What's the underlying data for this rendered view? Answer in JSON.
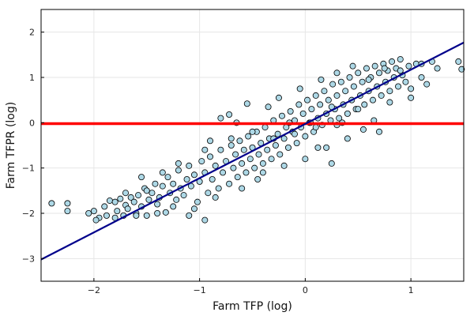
{
  "chart_data": {
    "type": "scatter",
    "title": "",
    "xlabel": "Farm TFP (log)",
    "ylabel": "Farm TFPR (log)",
    "xlim": [
      -2.5,
      1.5
    ],
    "ylim": [
      -3.5,
      2.5
    ],
    "x_ticks": [
      -2,
      -1,
      0,
      1
    ],
    "x_tick_labels": [
      "−2",
      "−1",
      "0",
      "1"
    ],
    "y_ticks": [
      -3,
      -2,
      -1,
      0,
      1,
      2
    ],
    "y_tick_labels": [
      "−3",
      "−2",
      "−1",
      "0",
      "1",
      "2"
    ],
    "grid": true,
    "legend": "none",
    "point_fill": "#add8e6",
    "point_stroke": "#000000",
    "points": [
      [
        -2.4,
        -1.78
      ],
      [
        -2.25,
        -1.78
      ],
      [
        -2.25,
        -1.95
      ],
      [
        -2.05,
        -2.0
      ],
      [
        -2.0,
        -1.95
      ],
      [
        -1.95,
        -2.1
      ],
      [
        -1.98,
        -2.15
      ],
      [
        -1.9,
        -1.85
      ],
      [
        -1.88,
        -2.05
      ],
      [
        -1.85,
        -1.72
      ],
      [
        -1.8,
        -2.1
      ],
      [
        -1.78,
        -1.95
      ],
      [
        -1.75,
        -1.68
      ],
      [
        -1.72,
        -2.05
      ],
      [
        -1.7,
        -1.82
      ],
      [
        -1.68,
        -1.9
      ],
      [
        -1.65,
        -1.65
      ],
      [
        -1.62,
        -1.75
      ],
      [
        -1.6,
        -2.0
      ],
      [
        -1.58,
        -1.6
      ],
      [
        -1.55,
        -1.85
      ],
      [
        -1.52,
        -1.45
      ],
      [
        -1.5,
        -2.05
      ],
      [
        -1.48,
        -1.7
      ],
      [
        -1.45,
        -1.55
      ],
      [
        -1.42,
        -1.35
      ],
      [
        -1.4,
        -1.8
      ],
      [
        -1.38,
        -1.65
      ],
      [
        -1.35,
        -1.4
      ],
      [
        -1.32,
        -1.98
      ],
      [
        -1.3,
        -1.2
      ],
      [
        -1.28,
        -1.55
      ],
      [
        -1.25,
        -1.35
      ],
      [
        -1.22,
        -1.7
      ],
      [
        -1.2,
        -1.05
      ],
      [
        -1.18,
        -1.45
      ],
      [
        -1.15,
        -1.6
      ],
      [
        -1.12,
        -1.25
      ],
      [
        -1.1,
        -0.95
      ],
      [
        -1.08,
        -1.4
      ],
      [
        -1.05,
        -1.15
      ],
      [
        -1.02,
        -1.75
      ],
      [
        -1.0,
        -1.3
      ],
      [
        -0.98,
        -0.85
      ],
      [
        -0.95,
        -1.1
      ],
      [
        -0.92,
        -1.55
      ],
      [
        -0.9,
        -0.75
      ],
      [
        -0.88,
        -1.25
      ],
      [
        -0.85,
        -0.95
      ],
      [
        -0.82,
        -1.45
      ],
      [
        -0.8,
        -0.6
      ],
      [
        -0.78,
        -1.1
      ],
      [
        -0.75,
        -0.85
      ],
      [
        -0.72,
        -1.35
      ],
      [
        -0.7,
        -0.5
      ],
      [
        -0.68,
        -1.0
      ],
      [
        -0.66,
        -0.7
      ],
      [
        -0.64,
        -1.2
      ],
      [
        -0.62,
        -0.4
      ],
      [
        -0.6,
        -0.9
      ],
      [
        -0.58,
        -0.6
      ],
      [
        -0.56,
        -1.1
      ],
      [
        -0.54,
        -0.3
      ],
      [
        -0.52,
        -0.8
      ],
      [
        -0.5,
        -0.55
      ],
      [
        -0.48,
        -1.0
      ],
      [
        -0.46,
        -0.2
      ],
      [
        -0.44,
        -0.7
      ],
      [
        -0.42,
        -0.45
      ],
      [
        -0.4,
        -0.9
      ],
      [
        -0.38,
        -0.1
      ],
      [
        -0.36,
        -0.6
      ],
      [
        -0.34,
        -0.35
      ],
      [
        -0.32,
        -0.8
      ],
      [
        -0.3,
        0.05
      ],
      [
        -0.28,
        -0.5
      ],
      [
        -0.26,
        -0.25
      ],
      [
        -0.24,
        -0.7
      ],
      [
        -0.22,
        0.15
      ],
      [
        -0.2,
        -0.35
      ],
      [
        -0.18,
        -0.1
      ],
      [
        -0.16,
        -0.55
      ],
      [
        -0.14,
        0.25
      ],
      [
        -0.12,
        -0.2
      ],
      [
        -0.1,
        0.05
      ],
      [
        -0.08,
        -0.45
      ],
      [
        -0.06,
        0.4
      ],
      [
        -0.04,
        -0.1
      ],
      [
        -0.02,
        0.2
      ],
      [
        0.0,
        -0.3
      ],
      [
        0.02,
        0.5
      ],
      [
        0.04,
        0.0
      ],
      [
        0.06,
        0.3
      ],
      [
        0.08,
        -0.2
      ],
      [
        0.1,
        0.6
      ],
      [
        0.12,
        0.1
      ],
      [
        0.14,
        0.4
      ],
      [
        0.16,
        -0.05
      ],
      [
        0.18,
        0.7
      ],
      [
        0.2,
        0.2
      ],
      [
        0.22,
        0.5
      ],
      [
        0.24,
        0.05
      ],
      [
        0.26,
        0.85
      ],
      [
        0.28,
        0.3
      ],
      [
        0.3,
        0.6
      ],
      [
        0.32,
        0.1
      ],
      [
        0.34,
        0.9
      ],
      [
        0.36,
        0.4
      ],
      [
        0.38,
        0.7
      ],
      [
        0.4,
        0.2
      ],
      [
        0.42,
        1.0
      ],
      [
        0.44,
        0.5
      ],
      [
        0.46,
        0.8
      ],
      [
        0.48,
        0.3
      ],
      [
        0.5,
        1.1
      ],
      [
        0.52,
        0.6
      ],
      [
        0.54,
        0.9
      ],
      [
        0.56,
        0.4
      ],
      [
        0.58,
        1.2
      ],
      [
        0.6,
        0.7
      ],
      [
        0.62,
        1.0
      ],
      [
        0.64,
        0.5
      ],
      [
        0.66,
        1.25
      ],
      [
        0.68,
        0.8
      ],
      [
        0.7,
        1.1
      ],
      [
        0.72,
        0.6
      ],
      [
        0.74,
        1.3
      ],
      [
        0.76,
        0.9
      ],
      [
        0.78,
        1.15
      ],
      [
        0.8,
        0.7
      ],
      [
        0.82,
        1.35
      ],
      [
        0.84,
        1.0
      ],
      [
        0.86,
        1.2
      ],
      [
        0.88,
        0.8
      ],
      [
        0.9,
        1.4
      ],
      [
        0.92,
        1.05
      ],
      [
        0.95,
        0.9
      ],
      [
        0.98,
        1.25
      ],
      [
        1.0,
        0.75
      ],
      [
        1.05,
        1.3
      ],
      [
        1.1,
        1.0
      ],
      [
        1.15,
        0.85
      ],
      [
        1.2,
        1.35
      ],
      [
        1.25,
        1.2
      ],
      [
        1.45,
        1.35
      ],
      [
        1.48,
        1.18
      ],
      [
        0.25,
        -0.9
      ],
      [
        0.12,
        -0.55
      ],
      [
        0.65,
        0.05
      ],
      [
        0.7,
        -0.2
      ],
      [
        -0.72,
        0.18
      ],
      [
        -0.55,
        0.42
      ],
      [
        -0.25,
        0.55
      ],
      [
        -0.35,
        0.35
      ],
      [
        -0.9,
        -0.4
      ],
      [
        -0.65,
        0.0
      ],
      [
        0.3,
        1.1
      ],
      [
        0.45,
        1.25
      ],
      [
        -0.05,
        0.75
      ],
      [
        0.15,
        0.95
      ],
      [
        -1.05,
        -1.9
      ],
      [
        -1.1,
        -2.05
      ],
      [
        -0.95,
        -2.15
      ],
      [
        -1.25,
        -1.85
      ],
      [
        -1.4,
        -2.0
      ],
      [
        -1.6,
        -2.05
      ],
      [
        -0.4,
        -1.1
      ],
      [
        -0.2,
        -0.95
      ],
      [
        0.0,
        -0.8
      ],
      [
        0.2,
        -0.55
      ],
      [
        0.4,
        -0.35
      ],
      [
        0.55,
        -0.15
      ],
      [
        -0.8,
        0.1
      ],
      [
        0.8,
        0.45
      ],
      [
        1.0,
        0.55
      ],
      [
        -0.6,
        -1.45
      ],
      [
        -0.45,
        -1.25
      ],
      [
        -0.85,
        -1.65
      ],
      [
        0.05,
        0.0
      ],
      [
        0.1,
        -0.1
      ],
      [
        -0.15,
        0.0
      ],
      [
        0.35,
        0.0
      ],
      [
        -1.55,
        -1.2
      ],
      [
        -1.35,
        -1.1
      ],
      [
        -1.2,
        -0.9
      ],
      [
        -1.5,
        -1.5
      ],
      [
        -1.7,
        -1.55
      ],
      [
        -1.8,
        -1.75
      ],
      [
        -0.3,
        -0.35
      ],
      [
        -0.1,
        -0.25
      ],
      [
        0.25,
        0.35
      ],
      [
        0.6,
        0.95
      ],
      [
        0.75,
        1.2
      ],
      [
        0.9,
        1.15
      ],
      [
        1.1,
        1.3
      ],
      [
        0.5,
        0.3
      ],
      [
        0.3,
        -0.05
      ],
      [
        -0.5,
        -0.2
      ],
      [
        -0.7,
        -0.35
      ],
      [
        -0.95,
        -0.6
      ]
    ],
    "lines": [
      {
        "name": "",
        "color": "#ff0000",
        "width": 3.5,
        "points": [
          [
            -2.5,
            -0.02
          ],
          [
            1.5,
            -0.02
          ]
        ]
      },
      {
        "name": "",
        "color": "#00008b",
        "width": 2.2,
        "points": [
          [
            -2.5,
            -3.02
          ],
          [
            1.5,
            1.77
          ]
        ]
      }
    ]
  }
}
